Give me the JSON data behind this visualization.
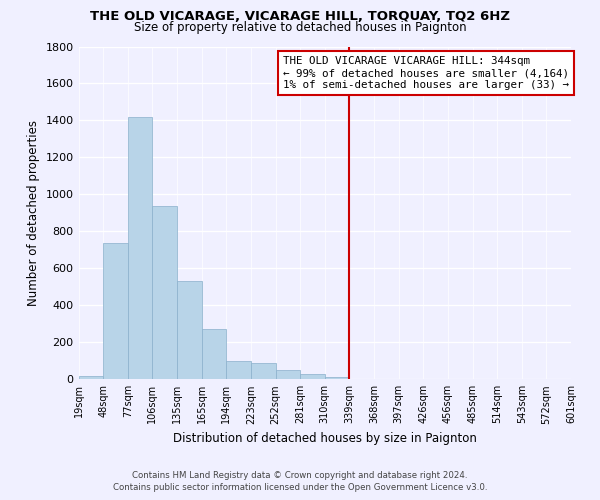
{
  "title": "THE OLD VICARAGE, VICARAGE HILL, TORQUAY, TQ2 6HZ",
  "subtitle": "Size of property relative to detached houses in Paignton",
  "xlabel": "Distribution of detached houses by size in Paignton",
  "ylabel": "Number of detached properties",
  "bar_values": [
    20,
    735,
    1420,
    935,
    530,
    270,
    100,
    90,
    50,
    30,
    10,
    0,
    0,
    0,
    0,
    0,
    0,
    0,
    0,
    0
  ],
  "bar_labels": [
    "19sqm",
    "48sqm",
    "77sqm",
    "106sqm",
    "135sqm",
    "165sqm",
    "194sqm",
    "223sqm",
    "252sqm",
    "281sqm",
    "310sqm",
    "339sqm",
    "368sqm",
    "397sqm",
    "426sqm",
    "456sqm",
    "485sqm",
    "514sqm",
    "543sqm",
    "572sqm",
    "601sqm"
  ],
  "bar_color": "#b8d4e8",
  "bar_edge_color": "#8ab0cc",
  "vline_color": "#cc0000",
  "ylim": [
    0,
    1800
  ],
  "yticks": [
    0,
    200,
    400,
    600,
    800,
    1000,
    1200,
    1400,
    1600,
    1800
  ],
  "annotation_title": "THE OLD VICARAGE VICARAGE HILL: 344sqm",
  "annotation_line1": "← 99% of detached houses are smaller (4,164)",
  "annotation_line2": "1% of semi-detached houses are larger (33) →",
  "footer1": "Contains HM Land Registry data © Crown copyright and database right 2024.",
  "footer2": "Contains public sector information licensed under the Open Government Licence v3.0.",
  "background_color": "#f0f0ff",
  "grid_color": "#ffffff"
}
